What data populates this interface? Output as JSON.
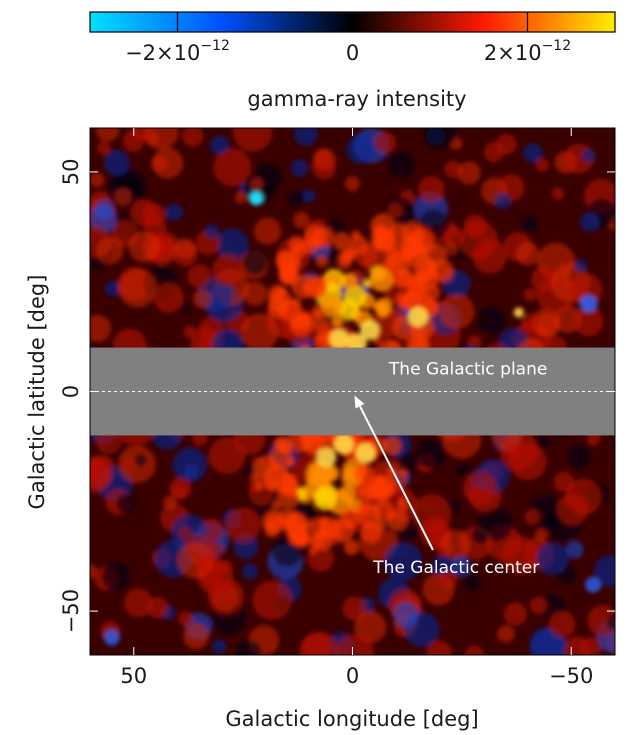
{
  "chart_data": {
    "type": "heatmap",
    "colorbar": {
      "label": "gamma-ray intensity",
      "range": [
        -3e-12,
        3e-12
      ],
      "ticks": [
        {
          "value": -2e-12,
          "mantissa": "−2×10",
          "exponent": "−12"
        },
        {
          "value": 0,
          "mantissa": "0",
          "exponent": ""
        },
        {
          "value": 2e-12,
          "mantissa": "2×10",
          "exponent": "−12"
        }
      ],
      "colors": [
        "#00e0ff",
        "#0050ff",
        "#000000",
        "#ff1a00",
        "#ffee00"
      ]
    },
    "x_axis": {
      "label": "Galactic longitude [deg]",
      "range": [
        60,
        -60
      ],
      "ticks": [
        50,
        0,
        -50
      ],
      "tick_labels": [
        "50",
        "0",
        "−50"
      ]
    },
    "y_axis": {
      "label": "Galactic latitude [deg]",
      "range": [
        -60,
        60
      ],
      "ticks": [
        50,
        0,
        -50
      ],
      "tick_labels": [
        "50",
        "0",
        "−50"
      ]
    },
    "masked_band": {
      "lat_range": [
        -10,
        10
      ],
      "color": "#808080"
    },
    "plane_line": {
      "latitude": 0
    },
    "annotations": [
      {
        "text": "The Galactic plane",
        "l": -15,
        "b": 3
      },
      {
        "text": "The Galactic center",
        "l": -18,
        "b": -40,
        "arrow_to": {
          "l": 0,
          "b": 0
        }
      }
    ]
  }
}
